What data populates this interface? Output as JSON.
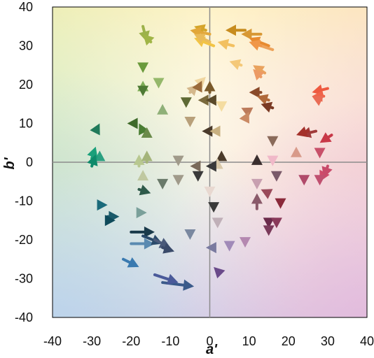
{
  "chart_data": {
    "type": "vector-field",
    "title": "",
    "xlabel": "a'",
    "ylabel": "b'",
    "xlim": [
      -40,
      40
    ],
    "ylim": [
      -40,
      40
    ],
    "xticks": [
      -40,
      -30,
      -20,
      -10,
      0,
      10,
      20,
      30,
      40
    ],
    "yticks": [
      -40,
      -30,
      -20,
      -10,
      0,
      10,
      20,
      30,
      40
    ],
    "tick_labels_x": [
      "-40",
      "-30",
      "-20",
      "-10",
      "0",
      "10",
      "20",
      "30",
      "40"
    ],
    "tick_labels_y": [
      "-40",
      "-30",
      "-20",
      "-10",
      "0",
      "10",
      "20",
      "30",
      "40"
    ],
    "zero_lines": true,
    "background": "CIELAB a'-b' hue gradient (green top-left, yellow top, red right, purple bottom-right, blue bottom-left)",
    "arrows": [
      {
        "from": [
          -17,
          35
        ],
        "to": [
          -16,
          31
        ],
        "color": "#9cb24a"
      },
      {
        "from": [
          -15,
          31
        ],
        "to": [
          -17,
          33
        ],
        "color": "#a0b546"
      },
      {
        "from": [
          -1,
          34
        ],
        "to": [
          -4,
          35
        ],
        "color": "#d4a52a"
      },
      {
        "from": [
          0,
          33
        ],
        "to": [
          -5,
          34
        ],
        "color": "#e2a73a"
      },
      {
        "from": [
          1,
          30
        ],
        "to": [
          -4,
          32
        ],
        "color": "#f2c444"
      },
      {
        "from": [
          0,
          31
        ],
        "to": [
          -4,
          33
        ],
        "color": "#e9bb5a"
      },
      {
        "from": [
          9,
          34
        ],
        "to": [
          4,
          34
        ],
        "color": "#c78c1e"
      },
      {
        "from": [
          13,
          33
        ],
        "to": [
          8,
          33
        ],
        "color": "#d89834"
      },
      {
        "from": [
          15,
          30
        ],
        "to": [
          10,
          32
        ],
        "color": "#e88a2e"
      },
      {
        "from": [
          16,
          29
        ],
        "to": [
          10,
          31
        ],
        "color": "#eda25a"
      },
      {
        "from": [
          13,
          30
        ],
        "to": [
          10,
          31
        ],
        "color": "#f09648"
      },
      {
        "from": [
          6,
          30
        ],
        "to": [
          2,
          31
        ],
        "color": "#f2c060"
      },
      {
        "from": [
          8,
          25
        ],
        "to": [
          5,
          26
        ],
        "color": "#f4c878"
      },
      {
        "from": [
          14,
          23
        ],
        "to": [
          11,
          25
        ],
        "color": "#e9a25e"
      },
      {
        "from": [
          13,
          22
        ],
        "to": [
          11,
          24
        ],
        "color": "#ec9a64"
      },
      {
        "from": [
          30,
          19
        ],
        "to": [
          26,
          18
        ],
        "color": "#ee5a40"
      },
      {
        "from": [
          29,
          17
        ],
        "to": [
          26,
          17
        ],
        "color": "#f0644a"
      },
      {
        "from": [
          28,
          16
        ],
        "to": [
          26,
          17
        ],
        "color": "#e96c55"
      },
      {
        "from": [
          -17,
          23
        ],
        "to": [
          -17,
          23
        ],
        "color": "#6a9a3c"
      },
      {
        "from": [
          -17,
          19
        ],
        "to": [
          -17,
          21
        ],
        "color": "#7fae58"
      },
      {
        "from": [
          -17,
          17
        ],
        "to": [
          -17,
          17
        ],
        "color": "#4e7a34"
      },
      {
        "from": [
          -13,
          19
        ],
        "to": [
          -13,
          19
        ],
        "color": "#95b86a"
      },
      {
        "from": [
          -12,
          13
        ],
        "to": [
          -12,
          15
        ],
        "color": "#8fb078"
      },
      {
        "from": [
          -6,
          14
        ],
        "to": [
          -6,
          14
        ],
        "color": "#5e6a34"
      },
      {
        "from": [
          -5,
          18
        ],
        "to": [
          -3,
          20
        ],
        "color": "#d4b88c"
      },
      {
        "from": [
          -2,
          21
        ],
        "to": [
          -1,
          22
        ],
        "color": "#f0d6a0"
      },
      {
        "from": [
          -3,
          19
        ],
        "to": [
          -2,
          21
        ],
        "color": "#9a6a3a"
      },
      {
        "from": [
          0,
          18
        ],
        "to": [
          0,
          21
        ],
        "color": "#7a5a2a"
      },
      {
        "from": [
          -1,
          16
        ],
        "to": [
          -3,
          16
        ],
        "color": "#7a6a3c"
      },
      {
        "from": [
          1,
          16
        ],
        "to": [
          -1,
          16
        ],
        "color": "#5a4a2a"
      },
      {
        "from": [
          3,
          13
        ],
        "to": [
          3,
          13
        ],
        "color": "#f4dca0"
      },
      {
        "from": [
          13,
          18
        ],
        "to": [
          10,
          18
        ],
        "color": "#8a4a2a"
      },
      {
        "from": [
          15,
          16
        ],
        "to": [
          12,
          17
        ],
        "color": "#b0693a"
      },
      {
        "from": [
          16,
          14
        ],
        "to": [
          13,
          15
        ],
        "color": "#7a3a24"
      },
      {
        "from": [
          10,
          13
        ],
        "to": [
          8,
          14
        ],
        "color": "#bc7a5a"
      },
      {
        "from": [
          9,
          11
        ],
        "to": [
          10,
          13
        ],
        "color": "#ca8a64"
      },
      {
        "from": [
          -5,
          9
        ],
        "to": [
          -5,
          9
        ],
        "color": "#b8a07a"
      },
      {
        "from": [
          -19,
          10
        ],
        "to": [
          -21,
          10
        ],
        "color": "#3e6a2a"
      },
      {
        "from": [
          -17,
          8
        ],
        "to": [
          -18,
          10
        ],
        "color": "#4a7e34"
      },
      {
        "from": [
          -16,
          7
        ],
        "to": [
          -16,
          9
        ],
        "color": "#6a8a4a"
      },
      {
        "from": [
          -29,
          8
        ],
        "to": [
          -28,
          10
        ],
        "color": "#207a5a"
      },
      {
        "from": [
          -28,
          1
        ],
        "to": [
          -28,
          3
        ],
        "color": "#2aa080"
      },
      {
        "from": [
          -30,
          1
        ],
        "to": [
          -29,
          4
        ],
        "color": "#1aa07a"
      },
      {
        "from": [
          -30,
          -1
        ],
        "to": [
          -29,
          2
        ],
        "color": "#0e8a6a"
      },
      {
        "from": [
          -18,
          -1
        ],
        "to": [
          -18,
          2
        ],
        "color": "#b8c890"
      },
      {
        "from": [
          -16,
          0
        ],
        "to": [
          -16,
          3
        ],
        "color": "#a4b47a"
      },
      {
        "from": [
          -17,
          -4
        ],
        "to": [
          -17,
          -2
        ],
        "color": "#c0c8a0"
      },
      {
        "from": [
          -1,
          8
        ],
        "to": [
          -2,
          8
        ],
        "color": "#4a3a2a"
      },
      {
        "from": [
          1,
          8
        ],
        "to": [
          0,
          8
        ],
        "color": "#c8b080"
      },
      {
        "from": [
          3,
          2
        ],
        "to": [
          3,
          3
        ],
        "color": "#4a3a2a"
      },
      {
        "from": [
          2,
          0
        ],
        "to": [
          2,
          1
        ],
        "color": "#d8c8a8"
      },
      {
        "from": [
          -4,
          -1
        ],
        "to": [
          -5,
          -1
        ],
        "color": "#7a6a5a"
      },
      {
        "from": [
          -8,
          -1
        ],
        "to": [
          -8,
          -1
        ],
        "color": "#a09a8a"
      },
      {
        "from": [
          0,
          -1
        ],
        "to": [
          -1,
          -1
        ],
        "color": "#3a3a3a"
      },
      {
        "from": [
          -3,
          -5
        ],
        "to": [
          -3,
          -5
        ],
        "color": "#3a3a3a"
      },
      {
        "from": [
          12,
          1
        ],
        "to": [
          12,
          2
        ],
        "color": "#3a2e2e"
      },
      {
        "from": [
          16,
          4
        ],
        "to": [
          16,
          4
        ],
        "color": "#8a6a5a"
      },
      {
        "from": [
          22,
          3
        ],
        "to": [
          22,
          4
        ],
        "color": "#d89a8a"
      },
      {
        "from": [
          27,
          8
        ],
        "to": [
          23,
          7
        ],
        "color": "#a03a3a"
      },
      {
        "from": [
          25,
          8
        ],
        "to": [
          22,
          7
        ],
        "color": "#a4302a"
      },
      {
        "from": [
          31,
          7
        ],
        "to": [
          28,
          5
        ],
        "color": "#c83848"
      },
      {
        "from": [
          28,
          1
        ],
        "to": [
          28,
          1
        ],
        "color": "#c8506a"
      },
      {
        "from": [
          29,
          -3
        ],
        "to": [
          28,
          -5
        ],
        "color": "#d04a6a"
      },
      {
        "from": [
          30,
          -1
        ],
        "to": [
          29,
          -4
        ],
        "color": "#c84a6a"
      },
      {
        "from": [
          -18,
          -7
        ],
        "to": [
          -15,
          -8
        ],
        "color": "#2e5a4a"
      },
      {
        "from": [
          -17,
          -13
        ],
        "to": [
          -16,
          -13
        ],
        "color": "#7aa09a"
      },
      {
        "from": [
          -28,
          -11
        ],
        "to": [
          -26,
          -11
        ],
        "color": "#1a6a7a"
      },
      {
        "from": [
          -26,
          -14
        ],
        "to": [
          -23,
          -14
        ],
        "color": "#1a5a6a"
      },
      {
        "from": [
          -26,
          -15
        ],
        "to": [
          -24,
          -15
        ],
        "color": "#0e4a5a"
      },
      {
        "from": [
          -20,
          -18
        ],
        "to": [
          -14,
          -18
        ],
        "color": "#1a3a4a"
      },
      {
        "from": [
          -20,
          -21
        ],
        "to": [
          -14,
          -21
        ],
        "color": "#5a8ab0"
      },
      {
        "from": [
          -17,
          -19
        ],
        "to": [
          -12,
          -21
        ],
        "color": "#2a4a6a"
      },
      {
        "from": [
          -14,
          -20
        ],
        "to": [
          -10,
          -22
        ],
        "color": "#4a5a7a"
      },
      {
        "from": [
          -12,
          -22
        ],
        "to": [
          -9,
          -23
        ],
        "color": "#3a4a6a"
      },
      {
        "from": [
          -12,
          -7
        ],
        "to": [
          -12,
          -7
        ],
        "color": "#6a7a6a"
      },
      {
        "from": [
          -8,
          -6
        ],
        "to": [
          -8,
          -6
        ],
        "color": "#a09a8a"
      },
      {
        "from": [
          -5,
          -20
        ],
        "to": [
          -5,
          -20
        ],
        "color": "#7a88a0"
      },
      {
        "from": [
          0,
          -9
        ],
        "to": [
          0,
          -9
        ],
        "color": "#e8d8d0"
      },
      {
        "from": [
          1,
          -13
        ],
        "to": [
          1,
          -13
        ],
        "color": "#3a3a3a"
      },
      {
        "from": [
          2,
          -17
        ],
        "to": [
          2,
          -17
        ],
        "color": "#c0b0b8"
      },
      {
        "from": [
          1,
          -22
        ],
        "to": [
          -1,
          -22
        ],
        "color": "#7a7aa0"
      },
      {
        "from": [
          -22,
          -25
        ],
        "to": [
          -18,
          -27
        ],
        "color": "#3a7ab0"
      },
      {
        "from": [
          -12,
          -31
        ],
        "to": [
          -4,
          -32
        ],
        "color": "#3a5a8a"
      },
      {
        "from": [
          -14,
          -29
        ],
        "to": [
          -8,
          -31
        ],
        "color": "#4a5a9a"
      },
      {
        "from": [
          2,
          -28
        ],
        "to": [
          1,
          -27
        ],
        "color": "#6a4a8a"
      },
      {
        "from": [
          5,
          -23
        ],
        "to": [
          5,
          -23
        ],
        "color": "#a08ab8"
      },
      {
        "from": [
          9,
          -22
        ],
        "to": [
          9,
          -22
        ],
        "color": "#b488b0"
      },
      {
        "from": [
          12,
          -7
        ],
        "to": [
          12,
          -7
        ],
        "color": "#c8a0b0"
      },
      {
        "from": [
          12,
          -12
        ],
        "to": [
          12,
          -8
        ],
        "color": "#8a5a6a"
      },
      {
        "from": [
          15,
          -8
        ],
        "to": [
          13,
          -7
        ],
        "color": "#9a4a5a"
      },
      {
        "from": [
          17,
          -5
        ],
        "to": [
          17,
          -5
        ],
        "color": "#7a5a6a"
      },
      {
        "from": [
          16,
          -1
        ],
        "to": [
          16,
          -1
        ],
        "color": "#f0b8c8"
      },
      {
        "from": [
          18,
          -10
        ],
        "to": [
          18,
          -12
        ],
        "color": "#8a2a3a"
      },
      {
        "from": [
          15,
          -17
        ],
        "to": [
          15,
          -17
        ],
        "color": "#6a2a4a"
      },
      {
        "from": [
          17,
          -17
        ],
        "to": [
          17,
          -17
        ],
        "color": "#8a3a5a"
      },
      {
        "from": [
          15,
          -19
        ],
        "to": [
          15,
          -19
        ],
        "color": "#7a3a5a"
      },
      {
        "from": [
          24,
          -6
        ],
        "to": [
          24,
          -6
        ],
        "color": "#b04a6a"
      },
      {
        "from": [
          28,
          -6
        ],
        "to": [
          28,
          -6
        ],
        "color": "#c05070"
      }
    ]
  }
}
